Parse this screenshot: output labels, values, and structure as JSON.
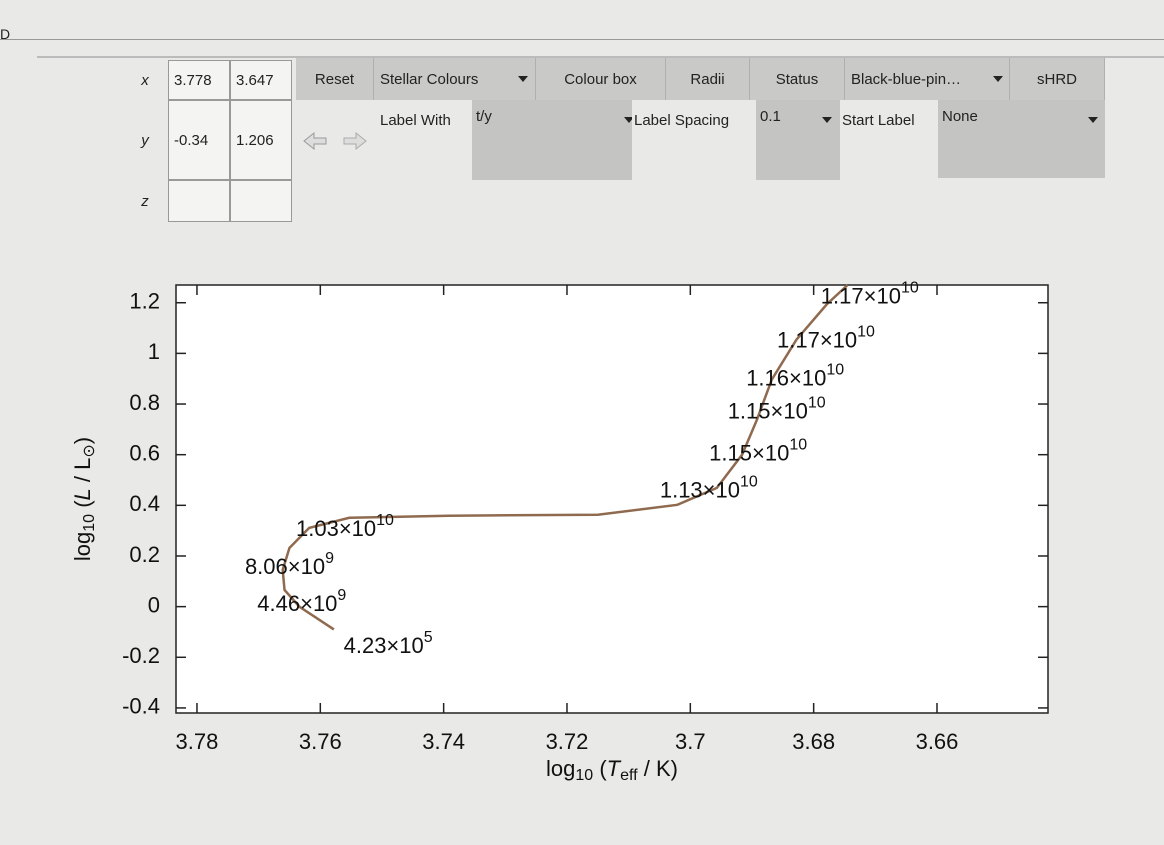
{
  "window": {
    "title": "D"
  },
  "toolbar": {
    "x_label": "x",
    "y_label": "y",
    "z_label": "z",
    "x_fields": [
      "3.778",
      "3.647"
    ],
    "y_fields": [
      "-0.34",
      "1.206"
    ],
    "buttons": [
      "Reset",
      "Stellar Colours",
      "Colour box",
      "Radii",
      "Status",
      "Black-blue-pin…",
      "sHRD"
    ],
    "label_with": "Label With",
    "label_with_value": "t/y",
    "label_spacing": "Label Spacing",
    "label_spacing_value": "0.1",
    "start_label": "Start Label",
    "start_label_value": "None"
  },
  "chart_data": {
    "type": "line",
    "x_label": [
      {
        "text": "log"
      },
      {
        "text": "10",
        "sub": true
      },
      {
        "text": " ("
      },
      {
        "text": "T",
        "italic": true
      },
      {
        "text": "eff",
        "sub": true
      },
      {
        "text": " / K)"
      }
    ],
    "y_label": [
      {
        "text": "log"
      },
      {
        "text": "10",
        "sub": true
      },
      {
        "text": " ("
      },
      {
        "text": "L",
        "italic": true
      },
      {
        "text": " / L"
      },
      {
        "text": "⊙",
        "sub": true
      },
      {
        "text": ")"
      }
    ],
    "x": [
      3.7578,
      3.7634,
      3.7658,
      3.7661,
      3.765,
      3.7618,
      3.7553,
      3.7392,
      3.715,
      3.7021,
      3.6957,
      3.6916,
      3.6892,
      3.6868,
      3.6828,
      3.6779,
      3.6745
    ],
    "values": [
      -0.09,
      0.0,
      0.066,
      0.145,
      0.232,
      0.311,
      0.351,
      0.359,
      0.363,
      0.402,
      0.469,
      0.6,
      0.738,
      0.896,
      1.054,
      1.193,
      1.27
    ],
    "color": "#8f6a4f",
    "xlim": [
      3.7834,
      3.642
    ],
    "ylim": [
      -0.42,
      1.27
    ],
    "xticks": [
      3.78,
      3.76,
      3.74,
      3.72,
      3.7,
      3.68,
      3.66
    ],
    "yticks": [
      1.2,
      1,
      0.8,
      0.6,
      0.4,
      0.2,
      0,
      -0.2,
      -0.4
    ],
    "annotations": [
      {
        "text": "1.17×10",
        "exp": "10",
        "x": 3.6709,
        "y": 1.22
      },
      {
        "text": "1.17×10",
        "exp": "10",
        "x": 3.678,
        "y": 1.046
      },
      {
        "text": "1.16×10",
        "exp": "10",
        "x": 3.683,
        "y": 0.896
      },
      {
        "text": "1.15×10",
        "exp": "10",
        "x": 3.686,
        "y": 0.766
      },
      {
        "text": "1.15×10",
        "exp": "10",
        "x": 3.689,
        "y": 0.6
      },
      {
        "text": "1.13×10",
        "exp": "10",
        "x": 3.697,
        "y": 0.454
      },
      {
        "text": "1.03×10",
        "exp": "10",
        "x": 3.756,
        "y": 0.303
      },
      {
        "text": "8.06×10",
        "exp": "9",
        "x": 3.765,
        "y": 0.153
      },
      {
        "text": "4.46×10",
        "exp": "9",
        "x": 3.763,
        "y": 0.007
      },
      {
        "text": "4.23×10",
        "exp": "5",
        "x": 3.749,
        "y": -0.159
      }
    ]
  }
}
